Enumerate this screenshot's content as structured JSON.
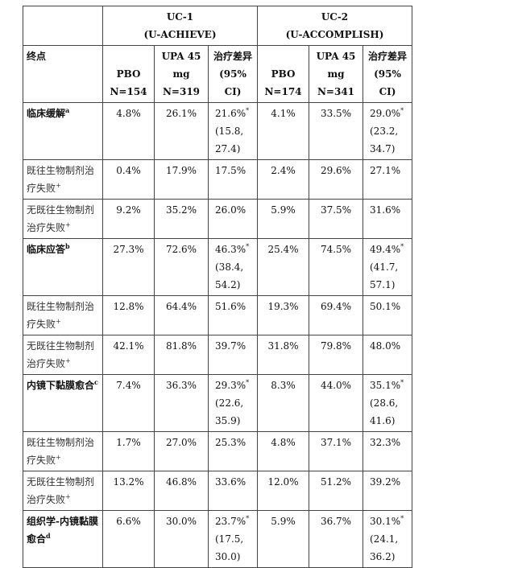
{
  "groups": [
    {
      "line1": "UC-1",
      "line2": "(U-ACHIEVE)"
    },
    {
      "line1": "UC-2",
      "line2": "(U-ACCOMPLISH)"
    }
  ],
  "header": {
    "endpoint": "终点",
    "cols": [
      [
        "PBO",
        "N=154"
      ],
      [
        "UPA 45",
        "mg",
        "N=319"
      ],
      [
        "治疗差异",
        "(95%",
        "CI)"
      ],
      [
        "PBO",
        "N=174"
      ],
      [
        "UPA 45",
        "mg",
        "N=341"
      ],
      [
        "治疗差异",
        "(95%",
        "CI)"
      ]
    ]
  },
  "rows": [
    {
      "label": "临床缓解",
      "sup": "a",
      "bold": true,
      "vals": [
        "4.8%",
        "26.1%",
        "21.6%",
        "4.1%",
        "33.5%",
        "29.0%"
      ],
      "ci1": [
        "(15.8,",
        "27.4)"
      ],
      "ci2": [
        "(23.2,",
        "34.7)"
      ],
      "star": "*"
    },
    {
      "label": "既往生物制剂治疗失败",
      "sup": "+",
      "bold": false,
      "vals": [
        "0.4%",
        "17.9%",
        "17.5%",
        "2.4%",
        "29.6%",
        "27.1%"
      ]
    },
    {
      "label": "无既往生物制剂治疗失败",
      "sup": "+",
      "bold": false,
      "vals": [
        "9.2%",
        "35.2%",
        "26.0%",
        "5.9%",
        "37.5%",
        "31.6%"
      ]
    },
    {
      "label": "临床应答",
      "sup": "b",
      "bold": true,
      "vals": [
        "27.3%",
        "72.6%",
        "46.3%",
        "25.4%",
        "74.5%",
        "49.4%"
      ],
      "ci1": [
        "(38.4,",
        "54.2)"
      ],
      "ci2": [
        "(41.7,",
        "57.1)"
      ],
      "star": "*"
    },
    {
      "label": "既往生物制剂治疗失败",
      "sup": "+",
      "bold": false,
      "vals": [
        "12.8%",
        "64.4%",
        "51.6%",
        "19.3%",
        "69.4%",
        "50.1%"
      ]
    },
    {
      "label": "无既往生物制剂治疗失败",
      "sup": "+",
      "bold": false,
      "vals": [
        "42.1%",
        "81.8%",
        "39.7%",
        "31.8%",
        "79.8%",
        "48.0%"
      ]
    },
    {
      "label": "内镜下黏膜愈合",
      "sup": "c",
      "bold": true,
      "vals": [
        "7.4%",
        "36.3%",
        "29.3%",
        "8.3%",
        "44.0%",
        "35.1%"
      ],
      "ci1": [
        "(22.6,",
        "35.9)"
      ],
      "ci2": [
        "(28.6,",
        "41.6)"
      ],
      "star": "*"
    },
    {
      "label": "既往生物制剂治疗失败",
      "sup": "+",
      "bold": false,
      "vals": [
        "1.7%",
        "27.0%",
        "25.3%",
        "4.8%",
        "37.1%",
        "32.3%"
      ]
    },
    {
      "label": "无既往生物制剂治疗失败",
      "sup": "+",
      "bold": false,
      "vals": [
        "13.2%",
        "46.8%",
        "33.6%",
        "12.0%",
        "51.2%",
        "39.2%"
      ]
    },
    {
      "label": "组织学-内镜黏膜愈合",
      "sup": "d",
      "bold": true,
      "vals": [
        "6.6%",
        "30.0%",
        "23.7%",
        "5.9%",
        "36.7%",
        "30.1%"
      ],
      "ci1": [
        "(17.5,",
        "30.0)"
      ],
      "ci2": [
        "(24.1,",
        "36.2)"
      ],
      "star": "*"
    }
  ]
}
